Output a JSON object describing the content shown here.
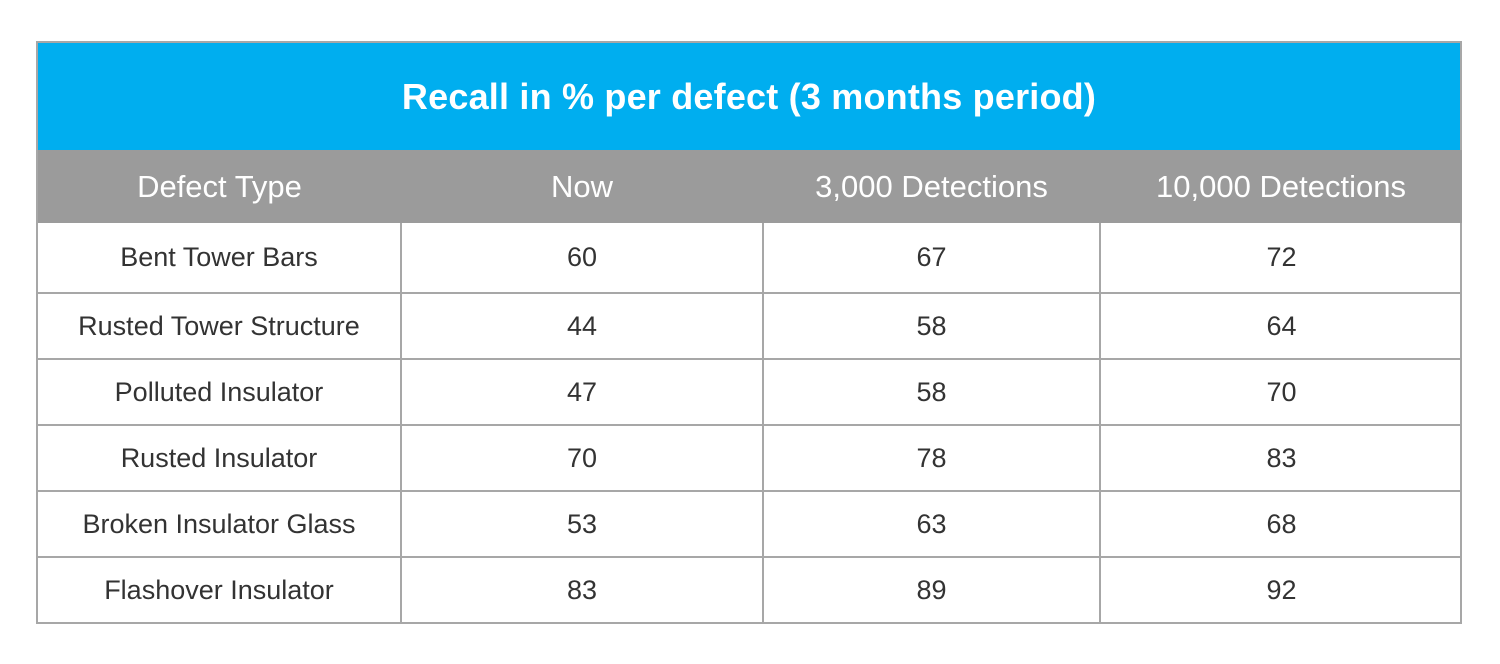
{
  "table": {
    "title": "Recall in % per defect (3 months period)",
    "headers": [
      "Defect Type",
      "Now",
      "3,000 Detections",
      "10,000 Detections"
    ],
    "rows": [
      [
        "Bent Tower Bars",
        "60",
        "67",
        "72"
      ],
      [
        "Rusted Tower Structure",
        "44",
        "58",
        "64"
      ],
      [
        "Polluted Insulator",
        "47",
        "58",
        "70"
      ],
      [
        "Rusted Insulator",
        "70",
        "78",
        "83"
      ],
      [
        "Broken Insulator Glass",
        "53",
        "63",
        "68"
      ],
      [
        "Flashover Insulator",
        "83",
        "89",
        "92"
      ]
    ]
  },
  "colors": {
    "title_bg": "#00aeef",
    "header_bg": "#9b9b9b",
    "border": "#a7a7a7",
    "body_text": "#333333"
  }
}
